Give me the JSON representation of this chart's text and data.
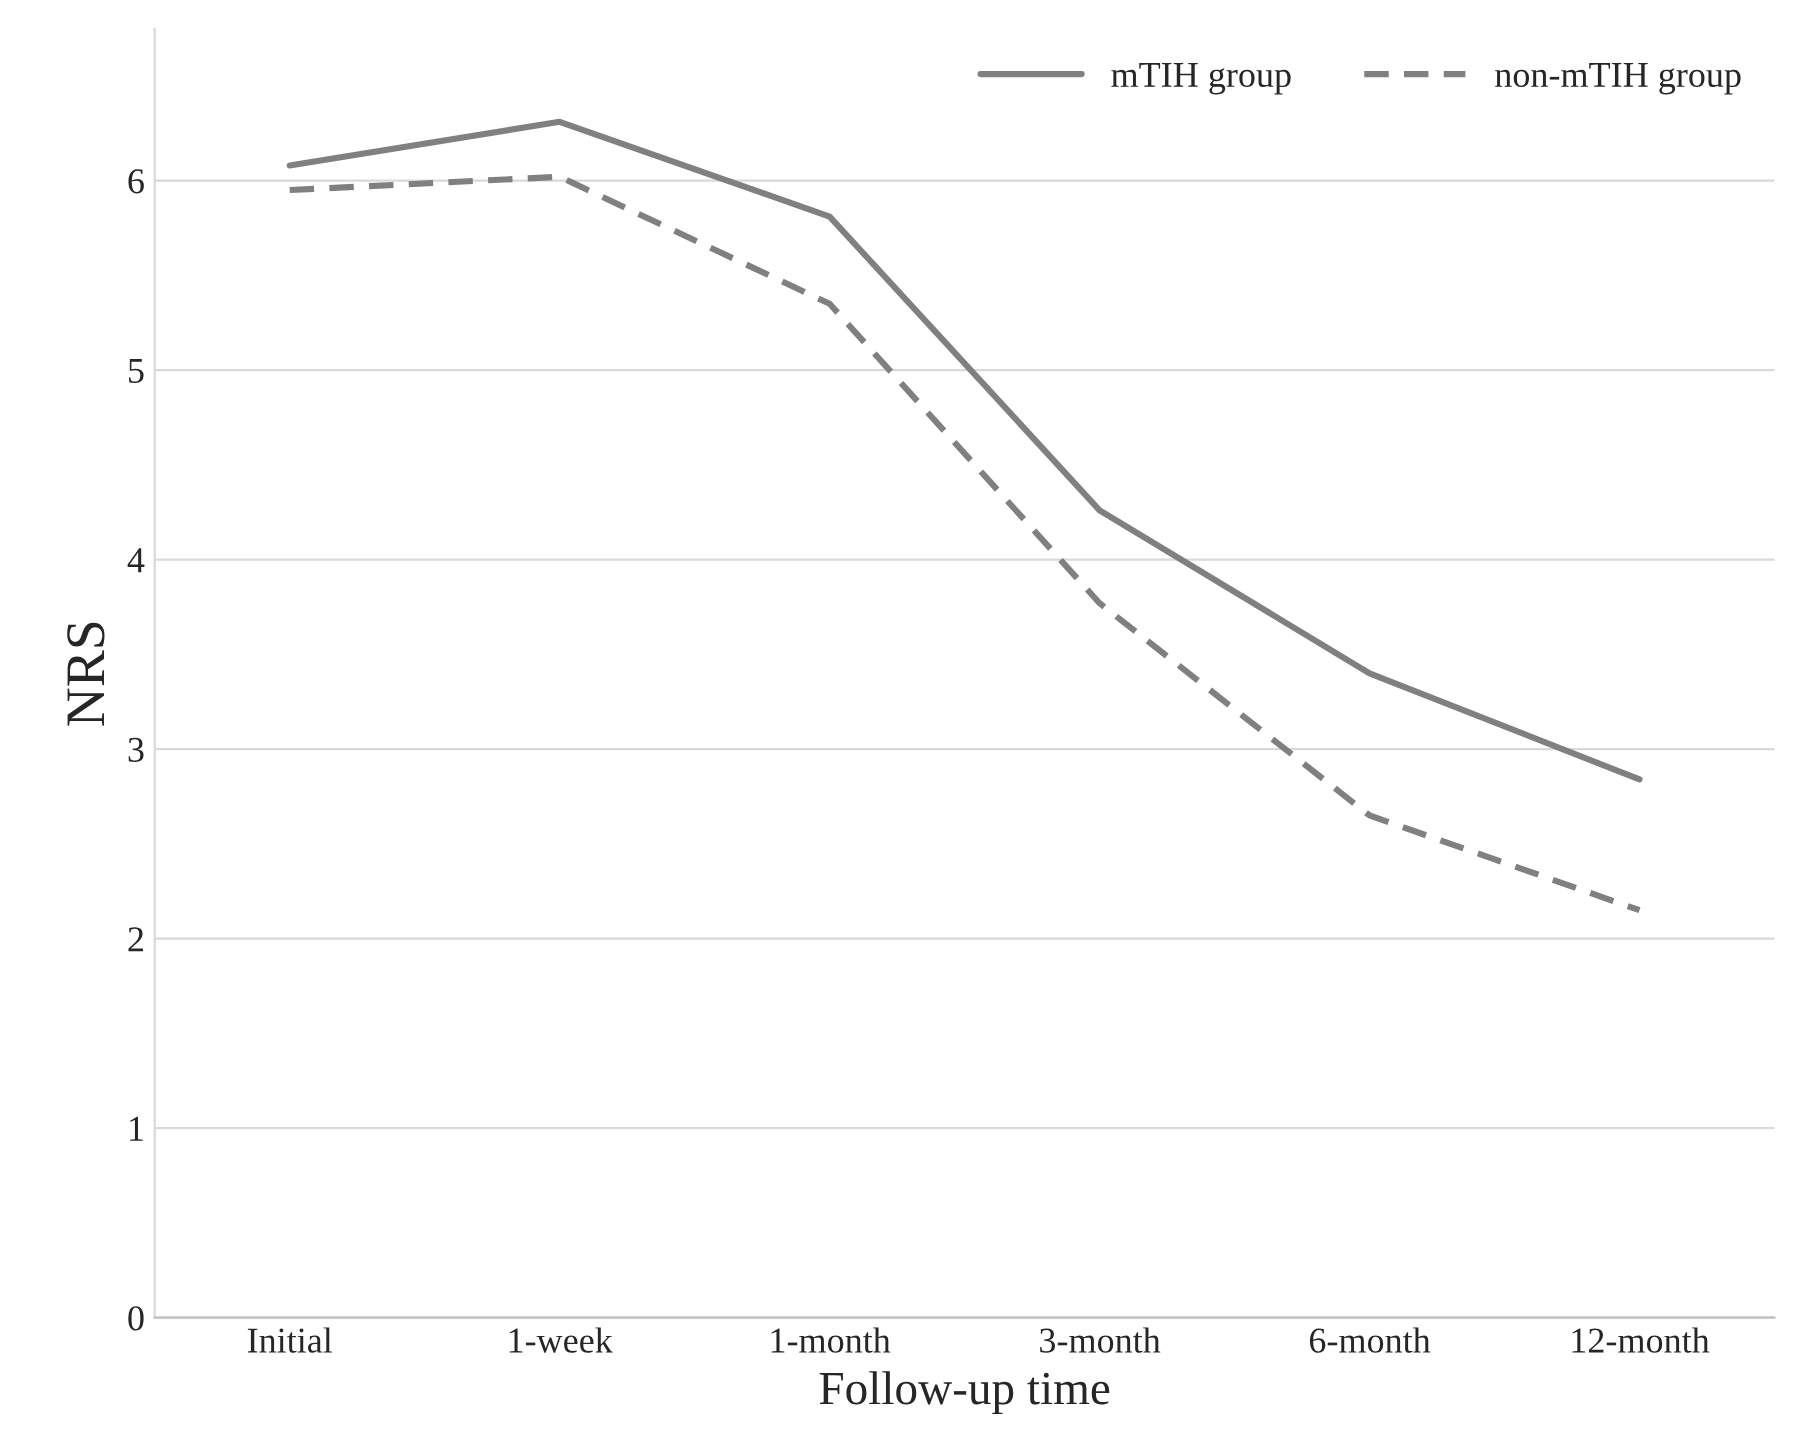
{
  "chart_data": {
    "type": "line",
    "xlabel": "Follow-up time",
    "ylabel": "NRS",
    "categories": [
      "Initial",
      "1-week",
      "1-month",
      "3-month",
      "6-month",
      "12-month"
    ],
    "series": [
      {
        "name": "mTIH group",
        "color": "#808080",
        "line_style": "solid",
        "values": [
          6.08,
          6.31,
          5.81,
          4.26,
          3.4,
          2.84
        ]
      },
      {
        "name": "non-mTIH group",
        "color": "#808080",
        "line_style": "dashed",
        "values": [
          5.95,
          6.02,
          5.35,
          3.77,
          2.65,
          2.15
        ]
      }
    ],
    "ylim": [
      0,
      6.8
    ],
    "yticks": [
      0,
      1,
      2,
      3,
      4,
      5,
      6
    ],
    "grid": "y",
    "legend": "top right",
    "marker": "none"
  }
}
